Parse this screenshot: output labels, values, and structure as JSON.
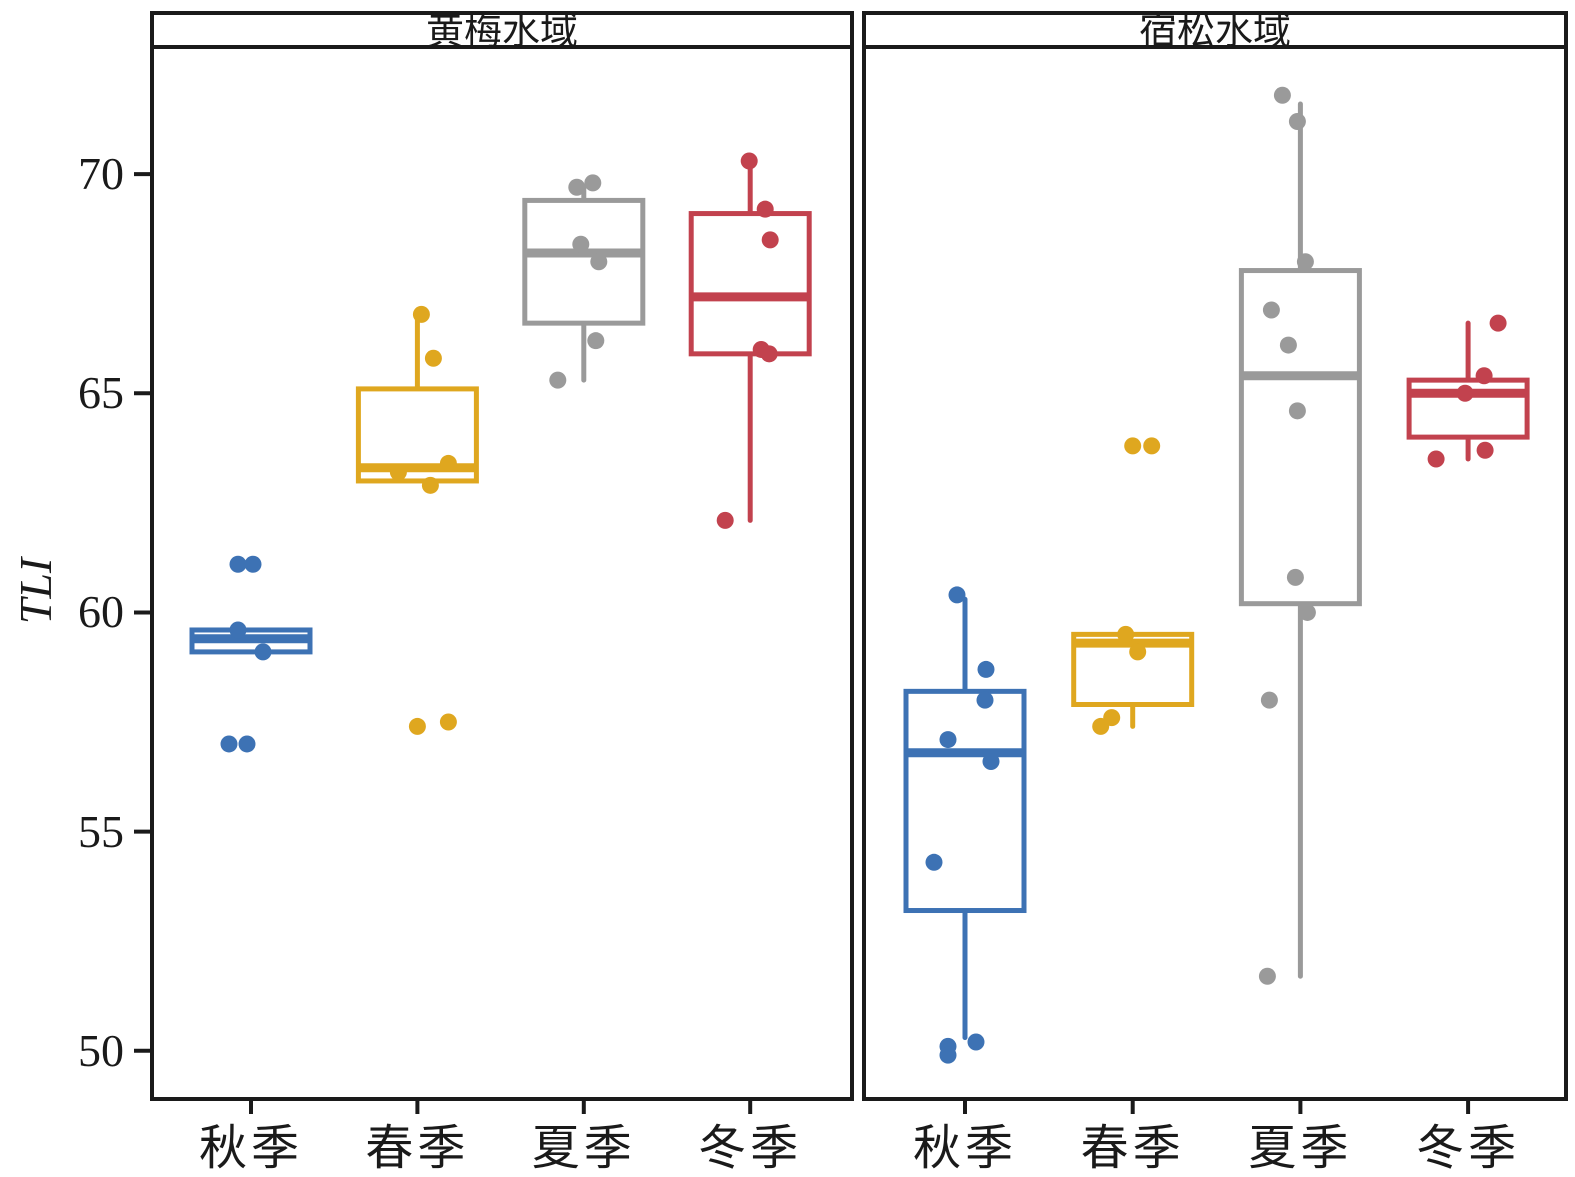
{
  "chart_data": {
    "type": "boxplot",
    "title": "",
    "ylabel": "TLI",
    "xlabel": "",
    "y_ticks": [
      70,
      65,
      60,
      55,
      50
    ],
    "y_domain": [
      48.9,
      72.9
    ],
    "grid": "off",
    "legend": "none",
    "x_categories": [
      "秋季",
      "春季",
      "夏季",
      "冬季"
    ],
    "colors": {
      "autumn": "#3d72b4",
      "spring": "#dfa71f",
      "summer": "#9a9a9a",
      "winter": "#c2424e",
      "axis": "#1a1a1a"
    },
    "panels": [
      {
        "title": "黄梅水域",
        "boxes": [
          {
            "category": "秋季",
            "color": "#3d72b4",
            "q1": 59.1,
            "median": 59.4,
            "q3": 59.6,
            "whisker_low": null,
            "whisker_high": null,
            "points": [
              {
                "v": 61.1,
                "dx": -13
              },
              {
                "v": 61.1,
                "dx": 2
              },
              {
                "v": 59.6,
                "dx": -13
              },
              {
                "v": 59.1,
                "dx": 12
              },
              {
                "v": 57.0,
                "dx": -22
              },
              {
                "v": 57.0,
                "dx": -4
              }
            ]
          },
          {
            "category": "春季",
            "color": "#dfa71f",
            "q1": 63.0,
            "median": 63.3,
            "q3": 65.1,
            "whisker_low": null,
            "whisker_high": 66.8,
            "points": [
              {
                "v": 66.8,
                "dx": 4
              },
              {
                "v": 65.8,
                "dx": 16
              },
              {
                "v": 63.4,
                "dx": 31
              },
              {
                "v": 63.2,
                "dx": -19
              },
              {
                "v": 62.9,
                "dx": 13
              },
              {
                "v": 57.4,
                "dx": 0
              },
              {
                "v": 57.5,
                "dx": 31
              }
            ]
          },
          {
            "category": "夏季",
            "color": "#9a9a9a",
            "q1": 66.6,
            "median": 68.2,
            "q3": 69.4,
            "whisker_low": 65.3,
            "whisker_high": 69.7,
            "points": [
              {
                "v": 69.7,
                "dx": -7
              },
              {
                "v": 69.8,
                "dx": 9
              },
              {
                "v": 68.4,
                "dx": -3
              },
              {
                "v": 68.0,
                "dx": 15
              },
              {
                "v": 66.2,
                "dx": 12
              },
              {
                "v": 65.3,
                "dx": -26
              }
            ]
          },
          {
            "category": "冬季",
            "color": "#c2424e",
            "q1": 65.9,
            "median": 67.2,
            "q3": 69.1,
            "whisker_low": 62.1,
            "whisker_high": 70.3,
            "points": [
              {
                "v": 70.3,
                "dx": -1
              },
              {
                "v": 69.2,
                "dx": 15
              },
              {
                "v": 68.5,
                "dx": 20
              },
              {
                "v": 66.0,
                "dx": 11
              },
              {
                "v": 65.9,
                "dx": 19
              },
              {
                "v": 62.1,
                "dx": -25
              }
            ]
          }
        ]
      },
      {
        "title": "宿松水域",
        "boxes": [
          {
            "category": "秋季",
            "color": "#3d72b4",
            "q1": 53.2,
            "median": 56.8,
            "q3": 58.2,
            "whisker_low": 50.3,
            "whisker_high": 60.3,
            "points": [
              {
                "v": 60.4,
                "dx": -8
              },
              {
                "v": 58.7,
                "dx": 21
              },
              {
                "v": 58.0,
                "dx": 20
              },
              {
                "v": 57.1,
                "dx": -17
              },
              {
                "v": 56.6,
                "dx": 26
              },
              {
                "v": 54.3,
                "dx": -31
              },
              {
                "v": 50.2,
                "dx": 11
              },
              {
                "v": 50.1,
                "dx": -17
              },
              {
                "v": 49.9,
                "dx": -17
              }
            ]
          },
          {
            "category": "春季",
            "color": "#dfa71f",
            "q1": 57.9,
            "median": 59.3,
            "q3": 59.5,
            "whisker_low": 57.4,
            "whisker_high": null,
            "points": [
              {
                "v": 63.8,
                "dx": 0
              },
              {
                "v": 63.8,
                "dx": 19
              },
              {
                "v": 59.5,
                "dx": -7
              },
              {
                "v": 59.1,
                "dx": 5
              },
              {
                "v": 57.6,
                "dx": -21
              },
              {
                "v": 57.4,
                "dx": -32
              }
            ]
          },
          {
            "category": "夏季",
            "color": "#9a9a9a",
            "q1": 60.2,
            "median": 65.4,
            "q3": 67.8,
            "whisker_low": 51.7,
            "whisker_high": 71.6,
            "points": [
              {
                "v": 71.8,
                "dx": -18
              },
              {
                "v": 71.2,
                "dx": -3
              },
              {
                "v": 68.0,
                "dx": 5
              },
              {
                "v": 66.9,
                "dx": -29
              },
              {
                "v": 66.1,
                "dx": -12
              },
              {
                "v": 64.6,
                "dx": -3
              },
              {
                "v": 60.8,
                "dx": -5
              },
              {
                "v": 60.0,
                "dx": 7
              },
              {
                "v": 58.0,
                "dx": -31
              },
              {
                "v": 51.7,
                "dx": -33
              }
            ]
          },
          {
            "category": "冬季",
            "color": "#c2424e",
            "q1": 64.0,
            "median": 65.0,
            "q3": 65.3,
            "whisker_low": 63.5,
            "whisker_high": 66.6,
            "points": [
              {
                "v": 66.6,
                "dx": 30
              },
              {
                "v": 65.4,
                "dx": 16
              },
              {
                "v": 65.0,
                "dx": -3
              },
              {
                "v": 63.7,
                "dx": 17
              },
              {
                "v": 63.5,
                "dx": -32
              }
            ]
          }
        ]
      }
    ]
  }
}
